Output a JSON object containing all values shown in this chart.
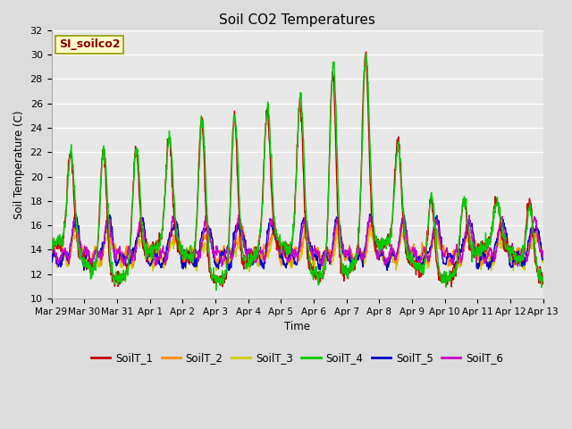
{
  "title": "Soil CO2 Temperatures",
  "xlabel": "Time",
  "ylabel": "Soil Temperature (C)",
  "ylim": [
    10,
    32
  ],
  "annotation": "SI_soilco2",
  "series_colors": {
    "SoilT_1": "#cc0000",
    "SoilT_2": "#ff8c00",
    "SoilT_3": "#cccc00",
    "SoilT_4": "#00cc00",
    "SoilT_5": "#0000cc",
    "SoilT_6": "#cc00cc"
  },
  "tick_labels": [
    "Mar 29",
    "Mar 30",
    "Mar 31",
    "Apr 1",
    "Apr 2",
    "Apr 3",
    "Apr 4",
    "Apr 5",
    "Apr 6",
    "Apr 7",
    "Apr 8",
    "Apr 9",
    "Apr 10",
    "Apr 11",
    "Apr 12",
    "Apr 13"
  ],
  "background_color": "#dcdcdc",
  "plot_bg_color": "#e8e8e8",
  "n_points": 1440,
  "days": 15
}
